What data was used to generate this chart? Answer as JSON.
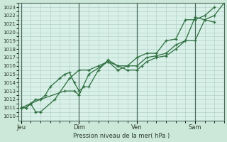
{
  "bg_color": "#cce8d8",
  "plot_bg_color": "#d8f0e8",
  "grid_color": "#aaccc0",
  "line_color": "#2d6e3e",
  "marker_color": "#2d6e3e",
  "ylabel": "Pression niveau de la mer( hPa )",
  "ylim": [
    1009.5,
    1023.5
  ],
  "yticks": [
    1010,
    1011,
    1012,
    1013,
    1014,
    1015,
    1016,
    1017,
    1018,
    1019,
    1020,
    1021,
    1022,
    1023
  ],
  "xtick_labels": [
    "Jeu",
    "Dim",
    "Ven",
    "Sam"
  ],
  "xtick_positions": [
    0,
    24,
    48,
    72
  ],
  "xlim": [
    -1,
    84
  ],
  "vlines": [
    0,
    24,
    48,
    72
  ],
  "series1_x": [
    0,
    2,
    4,
    6,
    8,
    10,
    12,
    16,
    18,
    20,
    22,
    24,
    26,
    28,
    32,
    36,
    40,
    44,
    48,
    50,
    52,
    56,
    60,
    64,
    68,
    72,
    76,
    80
  ],
  "series1_y": [
    1011,
    1011,
    1011.5,
    1012,
    1012,
    1012.5,
    1013.5,
    1014.5,
    1015,
    1015.2,
    1014,
    1013,
    1013.5,
    1013.5,
    1015.5,
    1016.7,
    1016,
    1015.5,
    1015.5,
    1016,
    1016.5,
    1017,
    1017.2,
    1018,
    1019,
    1019,
    1021.5,
    1021.2
  ],
  "series2_x": [
    0,
    2,
    4,
    6,
    8,
    14,
    20,
    24,
    28,
    32,
    36,
    40,
    44,
    48,
    52,
    56,
    60,
    64,
    68,
    72,
    76,
    80,
    84
  ],
  "series2_y": [
    1011,
    1011,
    1011.5,
    1010.5,
    1010.5,
    1012,
    1014.5,
    1015.5,
    1015.5,
    1016,
    1016.5,
    1015.5,
    1016,
    1016,
    1017,
    1017.2,
    1017.5,
    1018.5,
    1019,
    1021.8,
    1021.5,
    1022,
    1023.5
  ],
  "series3_x": [
    0,
    4,
    8,
    18,
    22,
    24,
    28,
    36,
    40,
    44,
    48,
    52,
    56,
    60,
    64,
    68,
    72,
    76,
    80
  ],
  "series3_y": [
    1011,
    1011.5,
    1012,
    1013,
    1013,
    1012.5,
    1015,
    1016.5,
    1016,
    1016,
    1017,
    1017.5,
    1017.5,
    1019,
    1019.2,
    1021.5,
    1021.5,
    1022,
    1023
  ]
}
